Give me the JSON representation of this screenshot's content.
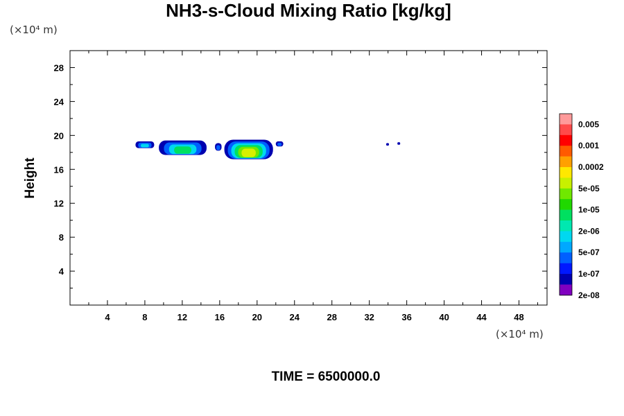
{
  "chart_data": {
    "type": "contour",
    "title": "NH3-s-Cloud Mixing Ratio [kg/kg]",
    "ylabel": "Height",
    "x_unit": "(×10⁴ m)",
    "y_unit": "(×10⁴ m)",
    "footer": "TIME = 6500000.0",
    "xlim": [
      0,
      51
    ],
    "ylim": [
      0,
      30
    ],
    "x_ticks": [
      4,
      8,
      12,
      16,
      20,
      24,
      28,
      32,
      36,
      40,
      44,
      48
    ],
    "y_ticks": [
      4,
      8,
      12,
      16,
      20,
      24,
      28
    ],
    "grid": false,
    "colorbar": {
      "position": "right",
      "labels": [
        "0.005",
        "0.001",
        "0.0002",
        "5e-05",
        "1e-05",
        "2e-06",
        "5e-07",
        "1e-07",
        "2e-08"
      ],
      "colors_top_to_bottom": [
        "#ff9a9a",
        "#ff4a4a",
        "#ff0000",
        "#ff5a00",
        "#ffa000",
        "#ffe800",
        "#c8f000",
        "#70e800",
        "#20d800",
        "#00e060",
        "#00e8b0",
        "#00d8f0",
        "#00a8ff",
        "#0060ff",
        "#0018ff",
        "#0000b0",
        "#8000c0"
      ]
    },
    "regions": [
      {
        "x_range": [
          7.0,
          9.0
        ],
        "y_range": [
          18.5,
          19.3
        ],
        "max_level": "5e-07"
      },
      {
        "x_range": [
          9.5,
          14.6
        ],
        "y_range": [
          17.7,
          19.4
        ],
        "max_level": "2e-06"
      },
      {
        "x_range": [
          15.5,
          16.2
        ],
        "y_range": [
          18.2,
          19.1
        ],
        "max_level": "1e-07"
      },
      {
        "x_range": [
          16.5,
          21.7
        ],
        "y_range": [
          17.2,
          19.5
        ],
        "max_level": "5e-05"
      },
      {
        "x_range": [
          22.0,
          22.8
        ],
        "y_range": [
          18.7,
          19.3
        ],
        "max_level": "1e-07"
      },
      {
        "x_range": [
          33.8,
          34.1
        ],
        "y_range": [
          18.8,
          19.1
        ],
        "max_level": "2e-08"
      },
      {
        "x_range": [
          35.0,
          35.3
        ],
        "y_range": [
          18.9,
          19.2
        ],
        "max_level": "2e-08"
      }
    ]
  }
}
